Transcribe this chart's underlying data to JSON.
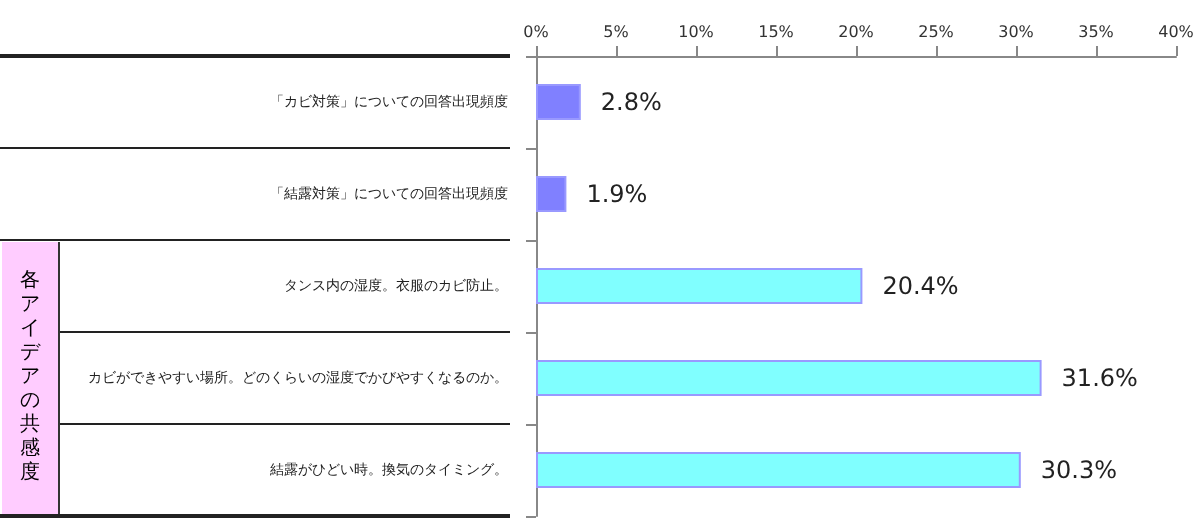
{
  "chart_data": {
    "type": "bar",
    "orientation": "horizontal",
    "categories": [
      "「カビ対策」についての回答出現頻度",
      "「結露対策」についての回答出現頻度",
      "タンス内の湿度。衣服のカビ防止。",
      "カビができやすい場所。どのくらいの湿度でかびやすくなるのか。",
      "結露がひどい時。換気のタイミング。"
    ],
    "values": [
      2.8,
      1.9,
      20.4,
      31.6,
      30.3
    ],
    "colors": [
      "#8080ff",
      "#8080ff",
      "#80ffff",
      "#80ffff",
      "#80ffff"
    ],
    "value_labels": [
      "2.8%",
      "1.9%",
      "20.4%",
      "31.6%",
      "30.3%"
    ],
    "xlim": [
      0,
      40
    ],
    "xticks": [
      {
        "value": 0,
        "label": "0%"
      },
      {
        "value": 5,
        "label": "5%"
      },
      {
        "value": 10,
        "label": "10%"
      },
      {
        "value": 15,
        "label": "15%"
      },
      {
        "value": 20,
        "label": "20%"
      },
      {
        "value": 25,
        "label": "25%"
      },
      {
        "value": 30,
        "label": "30%"
      },
      {
        "value": 35,
        "label": "35%"
      },
      {
        "value": 40,
        "label": "40%"
      }
    ],
    "annotations": [
      "各アイデアの共感度"
    ],
    "grid": false
  }
}
